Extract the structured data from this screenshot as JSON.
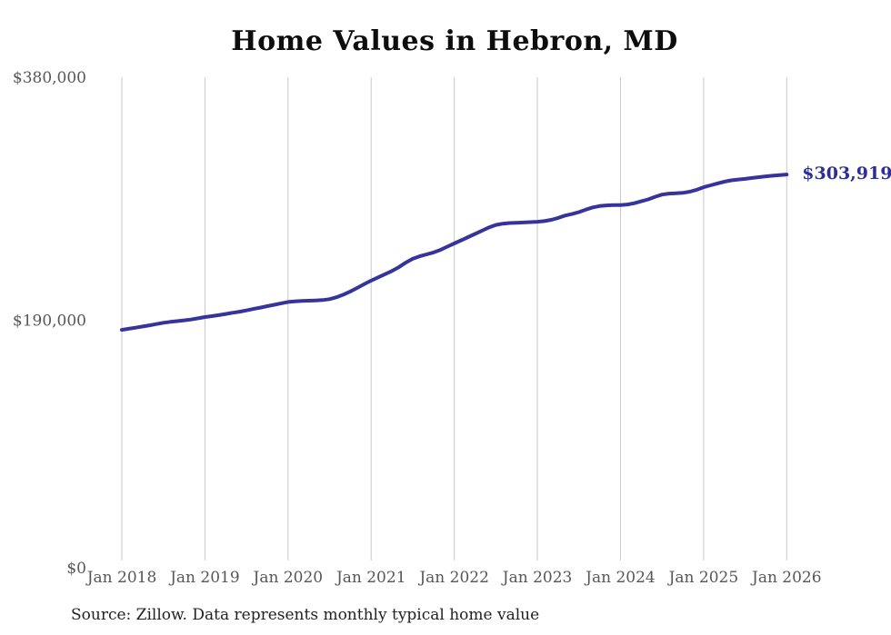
{
  "page": {
    "title": "Home Values in Hebron, MD",
    "source_note": "Source: Zillow. Data represents monthly typical home value"
  },
  "colors": {
    "line": "#34349c",
    "end_label": "#2e2e96",
    "grid": "#c9c9c9",
    "axis_text": "#575757",
    "title_text": "#0d0d0d",
    "source_text": "#222222",
    "background": "#ffffff"
  },
  "chart_data": {
    "type": "line",
    "title": "Home Values in Hebron, MD",
    "xlabel": "",
    "ylabel": "",
    "x_unit": "month",
    "x_tick_labels": [
      "Jan 2018",
      "Jan 2019",
      "Jan 2020",
      "Jan 2021",
      "Jan 2022",
      "Jan 2023",
      "Jan 2024",
      "Jan 2025",
      "Jan 2026"
    ],
    "y_tick_labels": [
      "$0",
      "$190,000",
      "$380,000"
    ],
    "y_tick_values": [
      0,
      190000,
      380000
    ],
    "ylim": [
      0,
      380000
    ],
    "grid": "vertical-only",
    "legend": "none",
    "end_label": "$303,919",
    "series": [
      {
        "name": "Monthly typical home value",
        "start": "Jan 2018",
        "end": "Jan 2026",
        "values": [
          182500,
          183300,
          184200,
          185100,
          186000,
          187000,
          188000,
          188700,
          189300,
          189900,
          190600,
          191500,
          192500,
          193200,
          194000,
          194900,
          195800,
          196700,
          197700,
          198800,
          199900,
          201000,
          202100,
          203200,
          204300,
          204800,
          205100,
          205300,
          205500,
          205800,
          206500,
          208000,
          210000,
          212500,
          215300,
          218200,
          221000,
          223500,
          226000,
          228500,
          231500,
          235000,
          238000,
          240000,
          241500,
          243000,
          245000,
          247500,
          250000,
          252500,
          255000,
          257500,
          260000,
          262500,
          264500,
          265500,
          266000,
          266200,
          266400,
          266700,
          267000,
          267500,
          268500,
          270000,
          271800,
          273000,
          274500,
          276500,
          278200,
          279300,
          279800,
          280000,
          280000,
          280500,
          281500,
          283000,
          284500,
          286500,
          288200,
          289000,
          289300,
          289600,
          290500,
          292000,
          294000,
          295500,
          297000,
          298300,
          299400,
          300000,
          300500,
          301200,
          301900,
          302500,
          303000,
          303500,
          303919
        ]
      }
    ]
  }
}
